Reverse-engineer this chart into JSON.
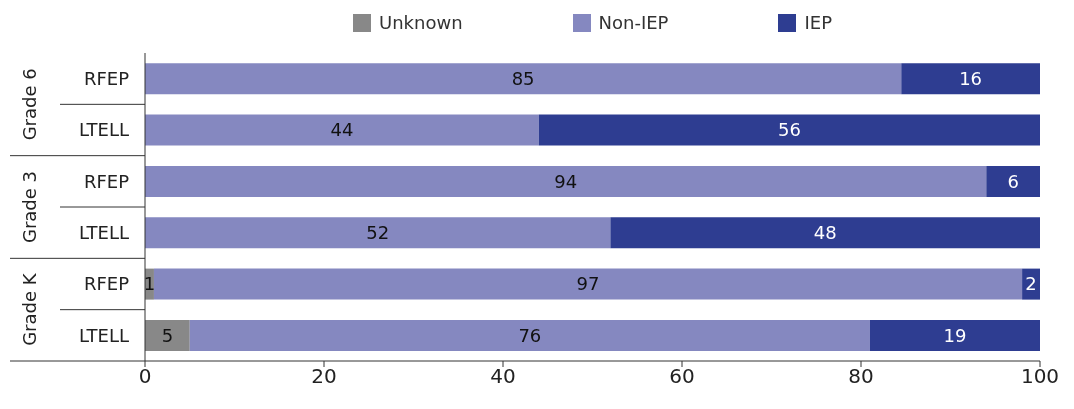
{
  "chart_data": {
    "type": "bar",
    "orientation": "horizontal",
    "stacked": true,
    "legend": "top",
    "categories": [
      "RFEP",
      "LTELL",
      "RFEP",
      "LTELL",
      "RFEP",
      "LTELL"
    ],
    "annotations": [
      "Grade 6",
      "Grade 3",
      "Grade K"
    ],
    "series": [
      {
        "name": "Unknown",
        "color": "#888888",
        "values": [
          null,
          null,
          null,
          null,
          1,
          5
        ],
        "value_labels": [
          null,
          null,
          null,
          null,
          "1",
          "5"
        ]
      },
      {
        "name": "Non-IEP",
        "color": "#8588c0",
        "values": [
          84.5,
          44,
          94,
          52,
          97,
          76
        ],
        "value_labels": [
          "85",
          "44",
          "94",
          "52",
          "97",
          "76"
        ]
      },
      {
        "name": "IEP",
        "color": "#2e3d91",
        "values": [
          15.5,
          56,
          6,
          48,
          2,
          19
        ],
        "value_labels": [
          "16",
          "56",
          "6",
          "48",
          "2",
          "19"
        ]
      }
    ],
    "xlim": [
      0,
      100
    ],
    "xticks": [
      0,
      20,
      40,
      60,
      80,
      100
    ]
  }
}
